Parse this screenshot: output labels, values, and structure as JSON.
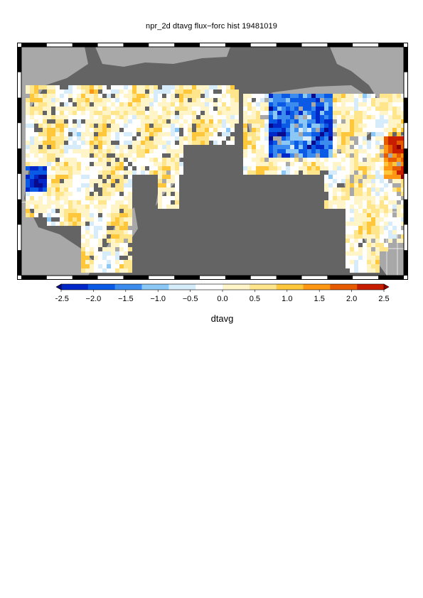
{
  "title": "npr_2d dtavg flux−forc hist 19481019",
  "colorbar": {
    "label": "dtavg",
    "ticks": [
      "−2.5",
      "−2.0",
      "−1.5",
      "−1.0",
      "−0.5",
      "0.0",
      "0.5",
      "1.0",
      "1.5",
      "2.0",
      "2.5"
    ],
    "range": [
      -2.5,
      2.5
    ],
    "colors": [
      "#0a0a8c",
      "#0028c8",
      "#0a5ae6",
      "#3c8cf0",
      "#8cc8f5",
      "#d7ecfa",
      "#ffffff",
      "#fff5c8",
      "#ffe68c",
      "#ffc83c",
      "#ff9614",
      "#e65a00",
      "#c81e00",
      "#8c0000"
    ],
    "extend": "both"
  },
  "map": {
    "ocean_color": "#646464",
    "land_color": "#a8a8a8",
    "border_color": "#ffffff",
    "region": "North Pacific",
    "frame": "alternating black/white border ticks"
  }
}
